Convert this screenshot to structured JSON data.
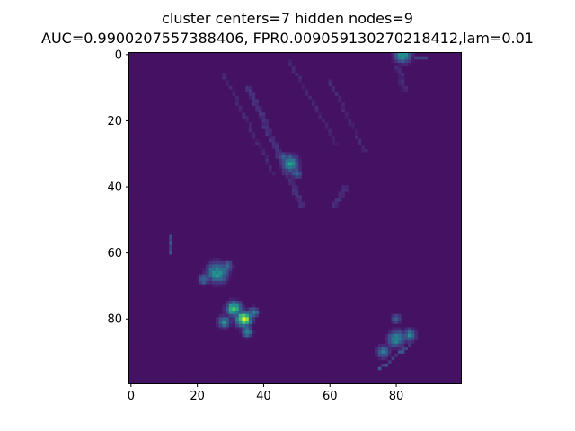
{
  "chart_data": {
    "type": "heatmap",
    "title": "cluster centers=7 hidden nodes=9",
    "subtitle": "AUC=0.9900207557388406, FPR0.009059130270218412,lam=0.01",
    "xlabel": "",
    "ylabel": "",
    "xlim": [
      -0.5,
      99.5
    ],
    "ylim": [
      99.5,
      -0.5
    ],
    "x_ticks": [
      0,
      20,
      40,
      60,
      80
    ],
    "y_ticks": [
      0,
      20,
      40,
      60,
      80
    ],
    "grid": false,
    "colormap": "viridis",
    "background_level": 0.05,
    "features": [
      {
        "x": 35,
        "y": 10,
        "len": 40,
        "dx": 0.45,
        "dy": 1,
        "level": 0.15,
        "w": 2
      },
      {
        "x": 28,
        "y": 6,
        "len": 35,
        "dx": 0.5,
        "dy": 1,
        "level": 0.12,
        "w": 1
      },
      {
        "x": 48,
        "y": 2,
        "len": 30,
        "dx": 0.55,
        "dy": 1,
        "level": 0.12,
        "w": 1
      },
      {
        "x": 60,
        "y": 8,
        "len": 25,
        "dx": 0.5,
        "dy": 1,
        "level": 0.13,
        "w": 1
      },
      {
        "x": 80,
        "y": 4,
        "len": 8,
        "dx": 0.3,
        "dy": 1,
        "level": 0.12,
        "w": 2
      },
      {
        "x": 86,
        "y": 1,
        "len": 4,
        "dx": 1,
        "dy": 0,
        "level": 0.2,
        "w": 1
      },
      {
        "x": 12,
        "y": 55,
        "len": 6,
        "dx": 0,
        "dy": 1,
        "level": 0.3,
        "w": 1
      },
      {
        "x": 64,
        "y": 40,
        "len": 8,
        "dx": -0.5,
        "dy": 1,
        "level": 0.14,
        "w": 2
      },
      {
        "x": 84,
        "y": 88,
        "len": 12,
        "dx": -1,
        "dy": 0.8,
        "level": 0.25,
        "w": 1
      }
    ],
    "blobs": [
      {
        "cx": 82,
        "cy": 0,
        "r": 2.5,
        "peak": 0.55
      },
      {
        "cx": 48,
        "cy": 33,
        "r": 2.5,
        "peak": 0.55
      },
      {
        "cx": 46,
        "cy": 31,
        "r": 1.5,
        "peak": 0.35
      },
      {
        "cx": 50,
        "cy": 36,
        "r": 1.5,
        "peak": 0.35
      },
      {
        "cx": 26,
        "cy": 66,
        "r": 3,
        "peak": 0.6
      },
      {
        "cx": 22,
        "cy": 68,
        "r": 1.6,
        "peak": 0.4
      },
      {
        "cx": 29,
        "cy": 64,
        "r": 1.6,
        "peak": 0.4
      },
      {
        "cx": 34,
        "cy": 80,
        "r": 2.2,
        "peak": 1.0
      },
      {
        "cx": 31,
        "cy": 77,
        "r": 2.2,
        "peak": 0.75
      },
      {
        "cx": 28,
        "cy": 81,
        "r": 1.8,
        "peak": 0.5
      },
      {
        "cx": 37,
        "cy": 78,
        "r": 1.5,
        "peak": 0.5
      },
      {
        "cx": 35,
        "cy": 84,
        "r": 1.5,
        "peak": 0.55
      },
      {
        "cx": 80,
        "cy": 86,
        "r": 2.5,
        "peak": 0.5
      },
      {
        "cx": 84,
        "cy": 85,
        "r": 2,
        "peak": 0.45
      },
      {
        "cx": 76,
        "cy": 90,
        "r": 2,
        "peak": 0.4
      },
      {
        "cx": 80,
        "cy": 80,
        "r": 1.5,
        "peak": 0.3
      }
    ]
  }
}
